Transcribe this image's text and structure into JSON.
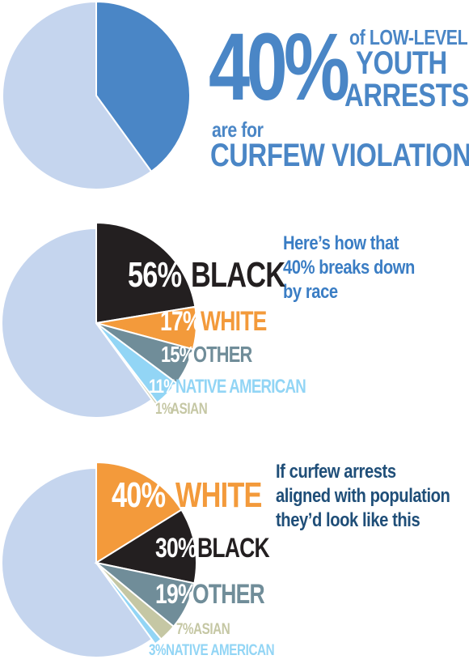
{
  "headline": {
    "pct": "40%",
    "line1": "of LOW-LEVEL",
    "line2": "YOUTH",
    "line3": "ARRESTS",
    "line4": "are for",
    "line5": "CURFEW VIOLATIONS"
  },
  "notes": {
    "breakdown": [
      "Here’s how that",
      "40% breaks down",
      "by race"
    ],
    "population": [
      "If curfew arrests",
      "aligned with population",
      "they’d look like this"
    ]
  },
  "colors": {
    "rest": "#c5d5ee",
    "curfew": "#4a86c6",
    "black": "#231f20",
    "white": "#f39a3b",
    "other": "#708d99",
    "native_american": "#92d5f5",
    "asian": "#c5c7a4"
  },
  "chart_data": [
    {
      "type": "pie",
      "slices": [
        {
          "key": "curfew",
          "label": "",
          "value": 40
        },
        {
          "key": "rest",
          "label": "",
          "value": 60
        }
      ]
    },
    {
      "type": "pie",
      "slice_total": 40,
      "slices": [
        {
          "key": "black",
          "pct": "56%",
          "name": "BLACK",
          "value": 56
        },
        {
          "key": "white",
          "pct": "17%",
          "name": "WHITE",
          "value": 17
        },
        {
          "key": "other",
          "pct": "15%",
          "name": "OTHER",
          "value": 15
        },
        {
          "key": "native_american",
          "pct": "11%",
          "name": "NATIVE AMERICAN",
          "value": 11
        },
        {
          "key": "asian",
          "pct": "1%",
          "name": "ASIAN",
          "value": 1
        }
      ]
    },
    {
      "type": "pie",
      "slice_total": 40,
      "slices": [
        {
          "key": "white",
          "pct": "40%",
          "name": "WHITE",
          "value": 40
        },
        {
          "key": "black",
          "pct": "30%",
          "name": "BLACK",
          "value": 30
        },
        {
          "key": "other",
          "pct": "19%",
          "name": "OTHER",
          "value": 19
        },
        {
          "key": "asian",
          "pct": "7%",
          "name": "ASIAN",
          "value": 7
        },
        {
          "key": "native_american",
          "pct": "3%",
          "name": "NATIVE AMERICAN",
          "value": 3
        }
      ]
    }
  ]
}
